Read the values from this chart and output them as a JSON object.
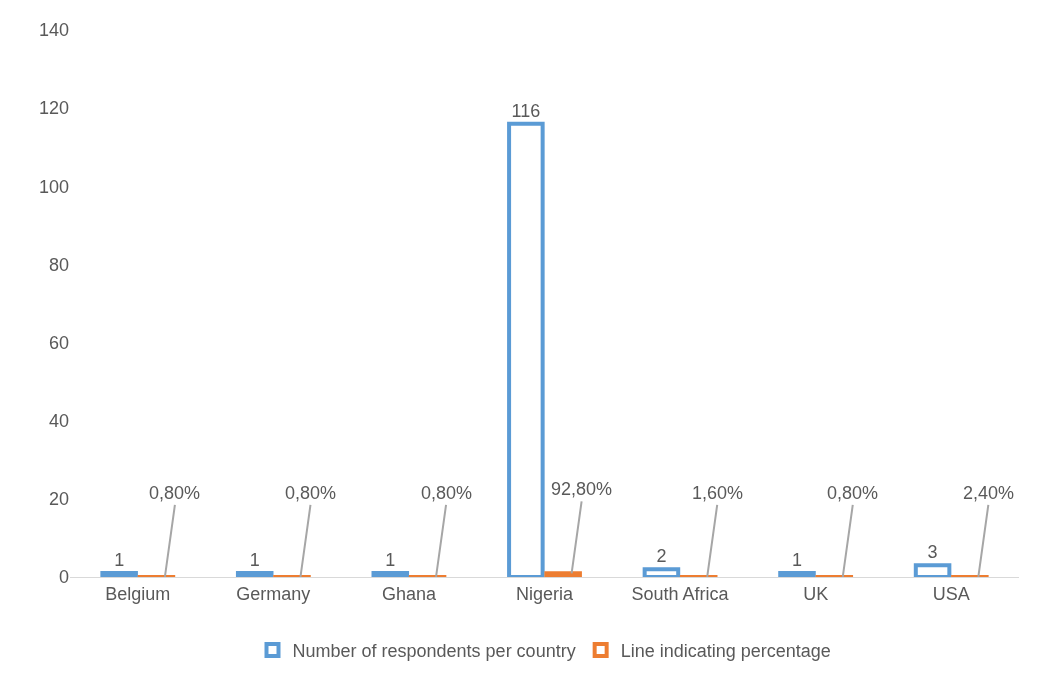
{
  "chart_data": {
    "type": "bar",
    "categories": [
      "Belgium",
      "Germany",
      "Ghana",
      "Nigeria",
      "South Africa",
      "UK",
      "USA"
    ],
    "series": [
      {
        "name": "Number of respondents per country",
        "color": "#5b9bd5",
        "values": [
          1,
          1,
          1,
          116,
          2,
          1,
          3
        ],
        "value_labels": [
          "1",
          "1",
          "1",
          "116",
          "2",
          "1",
          "3"
        ]
      },
      {
        "name": "Line indicating percentage",
        "color": "#ed7d31",
        "values": [
          0.008,
          0.008,
          0.008,
          0.928,
          0.016,
          0.008,
          0.024
        ],
        "value_labels": [
          "0,80%",
          "0,80%",
          "0,80%",
          "92,80%",
          "1,60%",
          "0,80%",
          "2,40%"
        ]
      }
    ],
    "ylim": [
      0,
      140
    ],
    "yticks": [
      0,
      20,
      40,
      60,
      80,
      100,
      120,
      140
    ],
    "grid": false,
    "legend": "bottom"
  }
}
